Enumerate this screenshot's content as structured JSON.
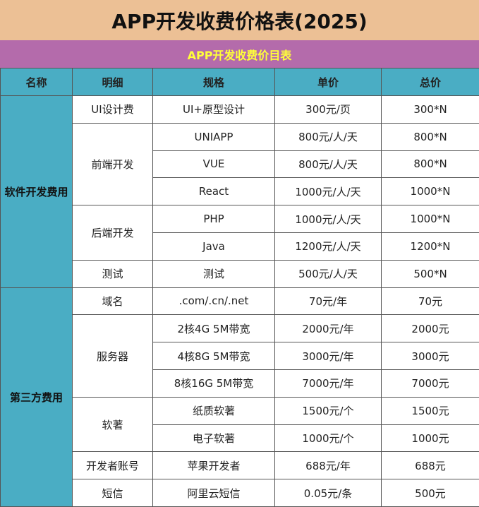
{
  "title": "APP开发收费价格表(2025)",
  "subtitle": "APP开发收费价目表",
  "colors": {
    "title_bg": "#ecc095",
    "subtitle_bg": "#b46bab",
    "subtitle_text": "#ffff3a",
    "header_bg": "#4aadc4"
  },
  "headers": [
    "名称",
    "明细",
    "规格",
    "单价",
    "总价"
  ],
  "groups": [
    {
      "name": "软件开发费用",
      "details": [
        {
          "name": "UI设计费",
          "rows": [
            [
              "UI+原型设计",
              "300元/页",
              "300*N"
            ]
          ]
        },
        {
          "name": "前端开发",
          "rows": [
            [
              "UNIAPP",
              "800元/人/天",
              "800*N"
            ],
            [
              "VUE",
              "800元/人/天",
              "800*N"
            ],
            [
              "React",
              "1000元/人/天",
              "1000*N"
            ]
          ]
        },
        {
          "name": "后端开发",
          "rows": [
            [
              "PHP",
              "1000元/人/天",
              "1000*N"
            ],
            [
              "Java",
              "1200元/人/天",
              "1200*N"
            ]
          ]
        },
        {
          "name": "测试",
          "rows": [
            [
              "测试",
              "500元/人/天",
              "500*N"
            ]
          ]
        }
      ]
    },
    {
      "name": "第三方费用",
      "details": [
        {
          "name": "域名",
          "rows": [
            [
              ".com/.cn/.net",
              "70元/年",
              "70元"
            ]
          ]
        },
        {
          "name": "服务器",
          "rows": [
            [
              "2核4G 5M带宽",
              "2000元/年",
              "2000元"
            ],
            [
              "4核8G 5M带宽",
              "3000元/年",
              "3000元"
            ],
            [
              "8核16G 5M带宽",
              "7000元/年",
              "7000元"
            ]
          ]
        },
        {
          "name": "软著",
          "rows": [
            [
              "纸质软著",
              "1500元/个",
              "1500元"
            ],
            [
              "电子软著",
              "1000元/个",
              "1000元"
            ]
          ]
        },
        {
          "name": "开发者账号",
          "rows": [
            [
              "苹果开发者",
              "688元/年",
              "688元"
            ]
          ]
        },
        {
          "name": "短信",
          "rows": [
            [
              "阿里云短信",
              "0.05元/条",
              "500元"
            ]
          ]
        }
      ]
    }
  ]
}
